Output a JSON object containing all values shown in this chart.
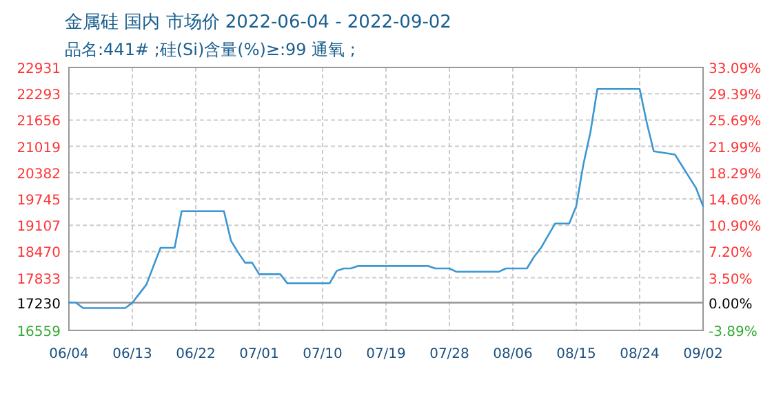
{
  "chart_data": {
    "type": "line",
    "title": "金属硅 国内 市场价 2022-06-04 - 2022-09-02",
    "subtitle": "品名:441# ;硅(Si)含量(%)≥:99 通氧 ;",
    "x": [
      "2022-06-04",
      "2022-06-05",
      "2022-06-06",
      "2022-06-12",
      "2022-06-13",
      "2022-06-14",
      "2022-06-15",
      "2022-06-16",
      "2022-06-17",
      "2022-06-19",
      "2022-06-20",
      "2022-06-26",
      "2022-06-27",
      "2022-06-28",
      "2022-06-29",
      "2022-06-30",
      "2022-07-01",
      "2022-07-04",
      "2022-07-05",
      "2022-07-11",
      "2022-07-12",
      "2022-07-13",
      "2022-07-14",
      "2022-07-15",
      "2022-07-25",
      "2022-07-26",
      "2022-07-28",
      "2022-07-29",
      "2022-08-04",
      "2022-08-05",
      "2022-08-08",
      "2022-08-09",
      "2022-08-10",
      "2022-08-12",
      "2022-08-14",
      "2022-08-15",
      "2022-08-16",
      "2022-08-17",
      "2022-08-18",
      "2022-08-24",
      "2022-08-25",
      "2022-08-26",
      "2022-08-29",
      "2022-09-01",
      "2022-09-02"
    ],
    "series": [
      {
        "color": "#3c96d2",
        "values": [
          17230,
          17230,
          17100,
          17100,
          17230,
          17450,
          17670,
          18120,
          18560,
          18560,
          19450,
          19450,
          18730,
          18450,
          18200,
          18200,
          17920,
          17920,
          17700,
          17700,
          18000,
          18060,
          18060,
          18120,
          18120,
          18060,
          18060,
          17980,
          17980,
          18060,
          18060,
          18340,
          18560,
          19150,
          19150,
          19570,
          20570,
          21350,
          22410,
          22410,
          21600,
          20900,
          20820,
          20010,
          19570
        ]
      }
    ],
    "xlim": [
      "2022-06-04",
      "2022-09-02"
    ],
    "xticks": [
      {
        "value": "2022-06-04",
        "label": "06/04"
      },
      {
        "value": "2022-06-13",
        "label": "06/13"
      },
      {
        "value": "2022-06-22",
        "label": "06/22"
      },
      {
        "value": "2022-07-01",
        "label": "07/01"
      },
      {
        "value": "2022-07-10",
        "label": "07/10"
      },
      {
        "value": "2022-07-19",
        "label": "07/19"
      },
      {
        "value": "2022-07-28",
        "label": "07/28"
      },
      {
        "value": "2022-08-06",
        "label": "08/06"
      },
      {
        "value": "2022-08-15",
        "label": "08/15"
      },
      {
        "value": "2022-08-24",
        "label": "08/24"
      },
      {
        "value": "2022-09-02",
        "label": "09/02"
      }
    ],
    "ylim": [
      16559,
      22931
    ],
    "yticks": [
      16559,
      17230,
      17833,
      18470,
      19107,
      19745,
      20382,
      21019,
      21656,
      22293,
      22931
    ],
    "y2lim": [
      -3.89,
      33.09
    ],
    "y2ticks": [
      {
        "value": -3.89,
        "label": "-3.89%"
      },
      {
        "value": 0,
        "label": "0.00%"
      },
      {
        "value": 3.5,
        "label": "3.50%"
      },
      {
        "value": 7.2,
        "label": "7.20%"
      },
      {
        "value": 10.9,
        "label": "10.90%"
      },
      {
        "value": 14.6,
        "label": "14.60%"
      },
      {
        "value": 18.29,
        "label": "18.29%"
      },
      {
        "value": 21.99,
        "label": "21.99%"
      },
      {
        "value": 25.69,
        "label": "25.69%"
      },
      {
        "value": 29.39,
        "label": "29.39%"
      },
      {
        "value": 33.09,
        "label": "33.09%"
      }
    ],
    "ref_lines": [
      {
        "axis": "y",
        "value": 17230,
        "color": "#999999"
      }
    ],
    "grid": true
  }
}
